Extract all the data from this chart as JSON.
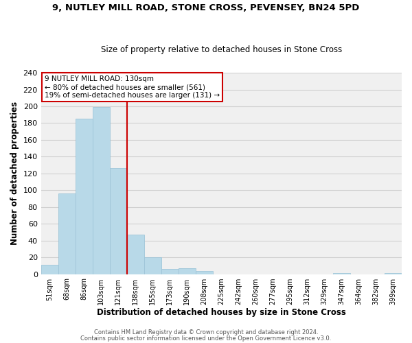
{
  "title_line1": "9, NUTLEY MILL ROAD, STONE CROSS, PEVENSEY, BN24 5PD",
  "title_line2": "Size of property relative to detached houses in Stone Cross",
  "xlabel": "Distribution of detached houses by size in Stone Cross",
  "ylabel": "Number of detached properties",
  "bin_labels": [
    "51sqm",
    "68sqm",
    "86sqm",
    "103sqm",
    "121sqm",
    "138sqm",
    "155sqm",
    "173sqm",
    "190sqm",
    "208sqm",
    "225sqm",
    "242sqm",
    "260sqm",
    "277sqm",
    "295sqm",
    "312sqm",
    "329sqm",
    "347sqm",
    "364sqm",
    "382sqm",
    "399sqm"
  ],
  "bar_heights": [
    11,
    96,
    185,
    199,
    126,
    47,
    20,
    6,
    7,
    4,
    0,
    0,
    0,
    0,
    0,
    0,
    0,
    1,
    0,
    0,
    1
  ],
  "bar_color": "#b8d9e8",
  "bar_edge_color": "#9fc5d8",
  "vline_color": "#cc0000",
  "annotation_line1": "9 NUTLEY MILL ROAD: 130sqm",
  "annotation_line2": "← 80% of detached houses are smaller (561)",
  "annotation_line3": "19% of semi-detached houses are larger (131) →",
  "annotation_box_color": "#ffffff",
  "annotation_box_edge": "#cc0000",
  "ylim": [
    0,
    240
  ],
  "yticks": [
    0,
    20,
    40,
    60,
    80,
    100,
    120,
    140,
    160,
    180,
    200,
    220,
    240
  ],
  "footnote1": "Contains HM Land Registry data © Crown copyright and database right 2024.",
  "footnote2": "Contains public sector information licensed under the Open Government Licence v3.0.",
  "grid_color": "#d0d0d0",
  "background_color": "#f0f0f0"
}
